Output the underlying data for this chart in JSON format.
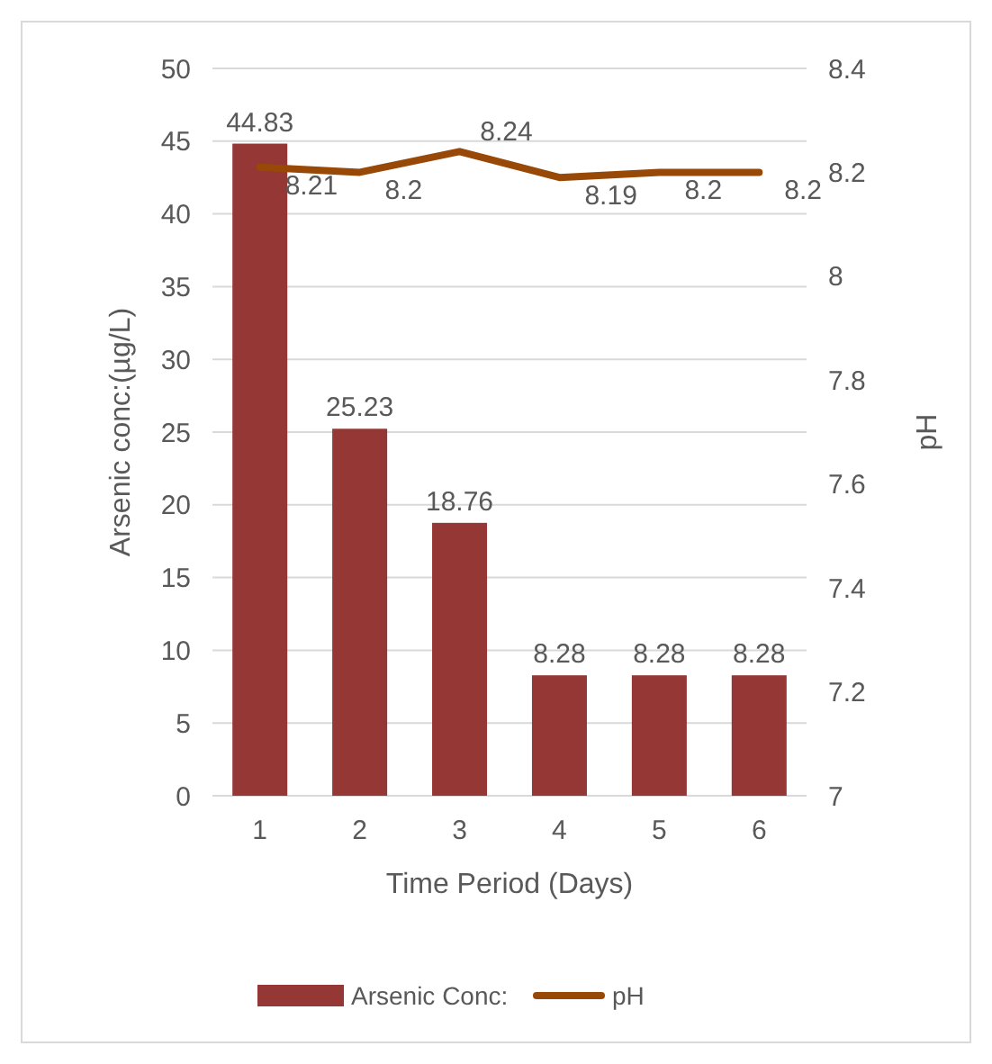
{
  "chart_data": {
    "type": "bar",
    "xlabel": "Time Period (Days)",
    "ylabel": "Arsenic conc:(µg/L)",
    "y2label": "pH",
    "categories": [
      "1",
      "2",
      "3",
      "4",
      "5",
      "6"
    ],
    "series": [
      {
        "name": "Arsenic Conc:",
        "color": "#953735",
        "values": [
          44.83,
          25.23,
          18.76,
          8.28,
          8.28,
          8.28
        ]
      },
      {
        "name": "pH",
        "type": "line",
        "axis": "y2",
        "color": "#984807",
        "values": [
          8.21,
          8.2,
          8.24,
          8.19,
          8.2,
          8.2
        ]
      }
    ],
    "ylim": [
      0,
      50
    ],
    "yticks": [
      0,
      5,
      10,
      15,
      20,
      25,
      30,
      35,
      40,
      45,
      50
    ],
    "y2lim": [
      7,
      8.4
    ],
    "y2ticks": [
      7,
      7.2,
      7.4,
      7.6,
      7.8,
      8,
      8.2,
      8.4
    ],
    "grid": "y",
    "legend": "bottom",
    "data_labels": true,
    "marker": "none"
  }
}
